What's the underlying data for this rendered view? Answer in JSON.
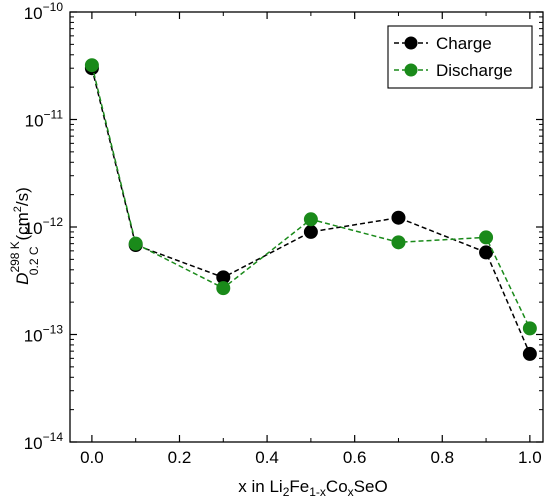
{
  "chart_data": {
    "type": "line",
    "xlabel": {
      "base": "x in Li",
      "sub1": "2",
      "mid1": "Fe",
      "sub2": "1-x",
      "mid2": "Co",
      "sub3": "x",
      "tail": "SeO"
    },
    "ylabel": {
      "base": "D",
      "sup": "298 K",
      "sub": "0.2 C",
      "unit": "(cm",
      "unit_sup": "2",
      "unit_tail": "/s)"
    },
    "xlim": [
      -0.05,
      1.03
    ],
    "ylim_exp": [
      -14,
      -10
    ],
    "y_scale": "log",
    "grid": false,
    "legend_position": "top-right",
    "x_ticks": [
      {
        "value": 0.0,
        "label": "0.0"
      },
      {
        "value": 0.2,
        "label": "0.2"
      },
      {
        "value": 0.4,
        "label": "0.4"
      },
      {
        "value": 0.6,
        "label": "0.6"
      },
      {
        "value": 0.8,
        "label": "0.8"
      },
      {
        "value": 1.0,
        "label": "1.0"
      }
    ],
    "y_ticks": [
      {
        "exp": -10,
        "base": "10",
        "sup": "−10"
      },
      {
        "exp": -11,
        "base": "10",
        "sup": "−11"
      },
      {
        "exp": -12,
        "base": "10",
        "sup": "−12"
      },
      {
        "exp": -13,
        "base": "10",
        "sup": "−13"
      },
      {
        "exp": -14,
        "base": "10",
        "sup": "−14"
      }
    ],
    "series": [
      {
        "name": "Charge",
        "color": "#000000",
        "x": [
          0.0,
          0.1,
          0.3,
          0.5,
          0.7,
          0.9,
          1.0
        ],
        "y": [
          3e-11,
          6.8e-13,
          3.4e-13,
          9e-13,
          1.22e-12,
          5.8e-13,
          6.6e-14
        ]
      },
      {
        "name": "Discharge",
        "color": "#1a8a1a",
        "x": [
          0.0,
          0.1,
          0.3,
          0.5,
          0.7,
          0.9,
          1.0
        ],
        "y": [
          3.2e-11,
          7e-13,
          2.7e-13,
          1.18e-12,
          7.2e-13,
          8e-13,
          1.14e-13
        ]
      }
    ]
  }
}
